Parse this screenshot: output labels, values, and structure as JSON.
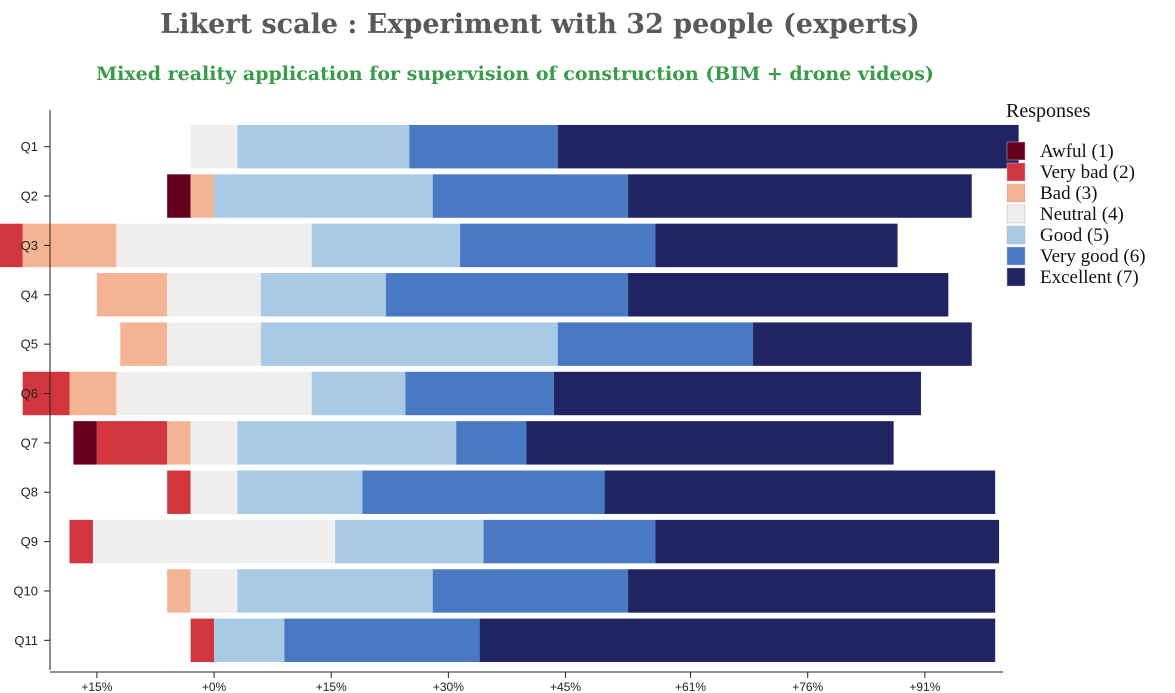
{
  "chart_data": {
    "type": "bar",
    "subtype": "diverging-stacked-horizontal",
    "title": "Likert scale : Experiment with 32 people (experts)",
    "subtitle": "Mixed reality application for supervision of construction (BIM + drone videos)",
    "legend_title": "Responses",
    "legend_position": "top-right",
    "x_tick_labels": [
      "+15%",
      "+0%",
      "+15%",
      "+30%",
      "+45%",
      "+61%",
      "+76%",
      "+91%"
    ],
    "x_tick_values": [
      -15,
      0,
      15,
      30,
      45,
      61,
      76,
      91
    ],
    "xlim": [
      -21,
      101
    ],
    "unit": "percent of respondents",
    "categories": [
      "Q1",
      "Q2",
      "Q3",
      "Q4",
      "Q5",
      "Q6",
      "Q7",
      "Q8",
      "Q9",
      "Q10",
      "Q11"
    ],
    "series": [
      {
        "name": "Awful (1)",
        "color": "#67001f",
        "values": [
          0,
          3,
          0,
          0,
          0,
          0,
          3,
          0,
          0,
          0,
          0
        ]
      },
      {
        "name": "Very bad (2)",
        "color": "#d1363e",
        "values": [
          0,
          0,
          3,
          0,
          0,
          6,
          9,
          3,
          3,
          0,
          3
        ]
      },
      {
        "name": "Bad (3)",
        "color": "#f4b393",
        "values": [
          0,
          3,
          12,
          9,
          6,
          6,
          3,
          0,
          0,
          3,
          0
        ]
      },
      {
        "name": "Neutral (4)",
        "color": "#f0eded",
        "values": [
          6,
          0,
          25,
          12,
          12,
          25,
          6,
          6,
          31,
          6,
          0
        ]
      },
      {
        "name": "Good (5)",
        "color": "#a8cae4",
        "values": [
          22,
          28,
          19,
          16,
          38,
          12,
          28,
          16,
          19,
          25,
          9
        ]
      },
      {
        "name": "Very good (6)",
        "color": "#4a79c3",
        "values": [
          19,
          25,
          25,
          31,
          25,
          19,
          9,
          31,
          22,
          25,
          25
        ]
      },
      {
        "name": "Excellent (7)",
        "color": "#212463",
        "values": [
          59,
          44,
          31,
          41,
          28,
          47,
          47,
          50,
          44,
          47,
          66
        ]
      }
    ]
  }
}
